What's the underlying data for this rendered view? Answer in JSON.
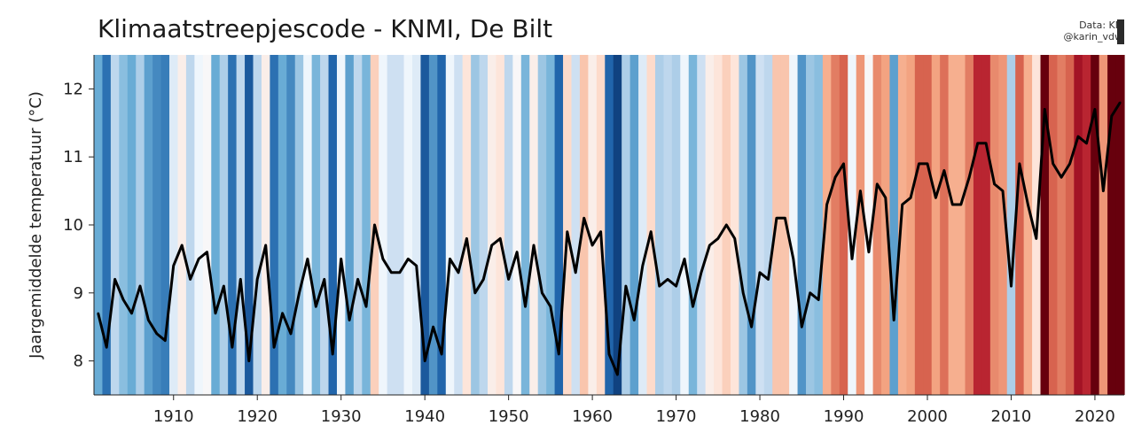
{
  "header": {
    "title": "Klimaatstreepjescode - KNMI, De Bilt",
    "credit_line1": "Data: KN",
    "credit_line2": "@karin_vdw"
  },
  "chart_data": {
    "type": "line",
    "title": "Klimaatstreepjescode - KNMI, De Bilt",
    "xlabel": "",
    "ylabel": "Jaargemiddelde temperatuur (°C)",
    "xlim": [
      1901,
      2023
    ],
    "ylim": [
      7.5,
      12.5
    ],
    "xticks": [
      1910,
      1920,
      1930,
      1940,
      1950,
      1960,
      1970,
      1980,
      1990,
      2000,
      2010,
      2020
    ],
    "yticks": [
      8,
      9,
      10,
      11,
      12
    ],
    "background": "warming stripes (colour per year by annual mean temperature, blue = cold, red = warm)",
    "grid": false,
    "legend": "none",
    "series": [
      {
        "color": "#000000",
        "x": [
          1901,
          1902,
          1903,
          1904,
          1905,
          1906,
          1907,
          1908,
          1909,
          1910,
          1911,
          1912,
          1913,
          1914,
          1915,
          1916,
          1917,
          1918,
          1919,
          1920,
          1921,
          1922,
          1923,
          1924,
          1925,
          1926,
          1927,
          1928,
          1929,
          1930,
          1931,
          1932,
          1933,
          1934,
          1935,
          1936,
          1937,
          1938,
          1939,
          1940,
          1941,
          1942,
          1943,
          1944,
          1945,
          1946,
          1947,
          1948,
          1949,
          1950,
          1951,
          1952,
          1953,
          1954,
          1955,
          1956,
          1957,
          1958,
          1959,
          1960,
          1961,
          1962,
          1963,
          1964,
          1965,
          1966,
          1967,
          1968,
          1969,
          1970,
          1971,
          1972,
          1973,
          1974,
          1975,
          1976,
          1977,
          1978,
          1979,
          1980,
          1981,
          1982,
          1983,
          1984,
          1985,
          1986,
          1987,
          1988,
          1989,
          1990,
          1991,
          1992,
          1993,
          1994,
          1995,
          1996,
          1997,
          1998,
          1999,
          2000,
          2001,
          2002,
          2003,
          2004,
          2005,
          2006,
          2007,
          2008,
          2009,
          2010,
          2011,
          2012,
          2013,
          2014,
          2015,
          2016,
          2017,
          2018,
          2019,
          2020,
          2021,
          2022,
          2023
        ],
        "values": [
          8.7,
          8.2,
          9.2,
          8.9,
          8.7,
          9.1,
          8.6,
          8.4,
          8.3,
          9.4,
          9.7,
          9.2,
          9.5,
          9.6,
          8.7,
          9.1,
          8.2,
          9.2,
          8.0,
          9.2,
          9.7,
          8.2,
          8.7,
          8.4,
          9.0,
          9.5,
          8.8,
          9.2,
          8.1,
          9.5,
          8.6,
          9.2,
          8.8,
          10.0,
          9.5,
          9.3,
          9.3,
          9.5,
          9.4,
          8.0,
          8.5,
          8.1,
          9.5,
          9.3,
          9.8,
          9.0,
          9.2,
          9.7,
          9.8,
          9.2,
          9.6,
          8.8,
          9.7,
          9.0,
          8.8,
          8.1,
          9.9,
          9.3,
          10.1,
          9.7,
          9.9,
          8.1,
          7.8,
          9.1,
          8.6,
          9.4,
          9.9,
          9.1,
          9.2,
          9.1,
          9.5,
          8.8,
          9.3,
          9.7,
          9.8,
          10.0,
          9.8,
          9.0,
          8.5,
          9.3,
          9.2,
          10.1,
          10.1,
          9.5,
          8.5,
          9.0,
          8.9,
          10.3,
          10.7,
          10.9,
          9.5,
          10.5,
          9.6,
          10.6,
          10.4,
          8.6,
          10.3,
          10.4,
          10.9,
          10.9,
          10.4,
          10.8,
          10.3,
          10.3,
          10.7,
          11.2,
          11.2,
          10.6,
          10.5,
          9.1,
          10.9,
          10.3,
          9.8,
          11.7,
          10.9,
          10.7,
          10.9,
          11.3,
          11.2,
          11.7,
          10.5,
          11.6,
          11.8
        ]
      }
    ]
  },
  "colors": {
    "cold_extreme": "#08306b",
    "cold": "#2171b5",
    "cool": "#9ecae1",
    "neutral": "#f7fbff",
    "warm": "#fcbba1",
    "hot": "#cb181d",
    "hot_extreme": "#67000d",
    "line": "#000000"
  }
}
